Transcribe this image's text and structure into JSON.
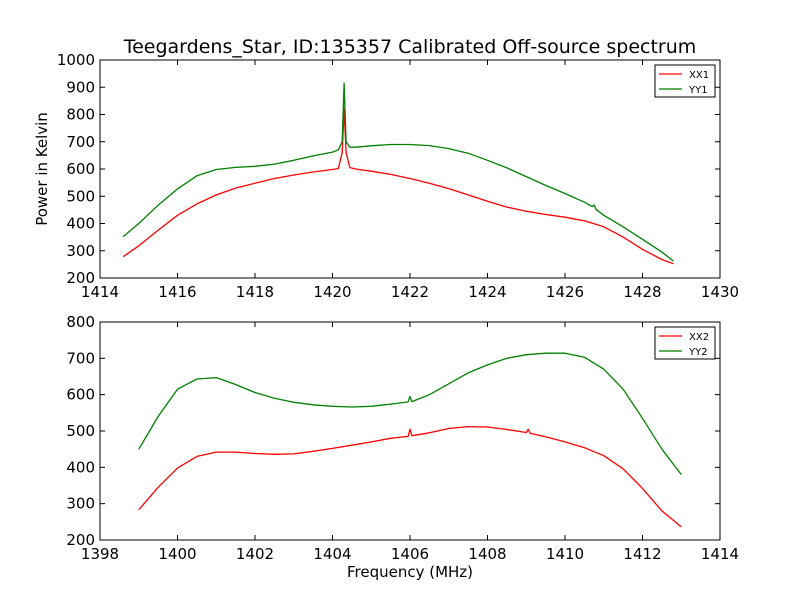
{
  "title": "Teegardens_Star, ID:135357 Calibrated Off-source spectrum",
  "xlabel": "Frequency (MHz)",
  "chart_data": [
    {
      "type": "line",
      "title": "Teegardens_Star, ID:135357 Calibrated Off-source spectrum",
      "xlabel": "",
      "ylabel": "Power in Kelvin",
      "xlim": [
        1414,
        1430
      ],
      "ylim": [
        200,
        1000
      ],
      "xticks": [
        "1414",
        "1416",
        "1418",
        "1420",
        "1422",
        "1424",
        "1426",
        "1428",
        "1430"
      ],
      "yticks": [
        "200",
        "300",
        "400",
        "500",
        "600",
        "700",
        "800",
        "900",
        "1000"
      ],
      "legend": "top-right",
      "grid": false,
      "series": [
        {
          "name": "XX1",
          "color": "#ff0000",
          "x": [
            1414.6,
            1415.0,
            1415.5,
            1416.0,
            1416.5,
            1417.0,
            1417.5,
            1418.0,
            1418.5,
            1419.0,
            1419.5,
            1420.0,
            1420.15,
            1420.25,
            1420.3,
            1420.35,
            1420.45,
            1420.6,
            1421.0,
            1421.5,
            1422.0,
            1422.5,
            1423.0,
            1423.5,
            1424.0,
            1424.5,
            1425.0,
            1425.5,
            1426.0,
            1426.5,
            1427.0,
            1427.5,
            1428.0,
            1428.5,
            1428.8
          ],
          "y": [
            278,
            318,
            375,
            430,
            472,
            505,
            530,
            548,
            565,
            578,
            589,
            598,
            602,
            660,
            820,
            660,
            605,
            600,
            592,
            580,
            565,
            548,
            528,
            505,
            482,
            460,
            445,
            433,
            423,
            410,
            388,
            350,
            305,
            268,
            252
          ]
        },
        {
          "name": "YY1",
          "color": "#008000",
          "x": [
            1414.6,
            1415.0,
            1415.5,
            1416.0,
            1416.5,
            1417.0,
            1417.5,
            1418.0,
            1418.5,
            1419.0,
            1419.5,
            1420.0,
            1420.15,
            1420.25,
            1420.3,
            1420.35,
            1420.45,
            1420.6,
            1421.0,
            1421.5,
            1422.0,
            1422.5,
            1423.0,
            1423.5,
            1424.0,
            1424.5,
            1425.0,
            1425.5,
            1426.0,
            1426.5,
            1426.7,
            1426.75,
            1426.8,
            1427.0,
            1427.5,
            1428.0,
            1428.5,
            1428.8
          ],
          "y": [
            352,
            400,
            467,
            527,
            575,
            598,
            606,
            610,
            618,
            632,
            648,
            662,
            670,
            700,
            915,
            700,
            680,
            680,
            685,
            690,
            690,
            686,
            675,
            658,
            632,
            604,
            572,
            540,
            510,
            478,
            462,
            468,
            452,
            430,
            388,
            342,
            295,
            262
          ]
        }
      ]
    },
    {
      "type": "line",
      "title": "",
      "xlabel": "Frequency (MHz)",
      "ylabel": "",
      "xlim": [
        1398,
        1414
      ],
      "ylim": [
        200,
        800
      ],
      "xticks": [
        "1398",
        "1400",
        "1402",
        "1404",
        "1406",
        "1408",
        "1410",
        "1412",
        "1414"
      ],
      "yticks": [
        "200",
        "300",
        "400",
        "500",
        "600",
        "700",
        "800"
      ],
      "legend": "top-right",
      "grid": false,
      "series": [
        {
          "name": "XX2",
          "color": "#ff0000",
          "x": [
            1399.0,
            1399.5,
            1400.0,
            1400.5,
            1401.0,
            1401.5,
            1402.0,
            1402.5,
            1403.0,
            1403.5,
            1404.0,
            1404.5,
            1405.0,
            1405.5,
            1405.95,
            1406.0,
            1406.05,
            1406.5,
            1407.0,
            1407.5,
            1408.0,
            1408.5,
            1409.0,
            1409.05,
            1409.1,
            1409.5,
            1410.0,
            1410.5,
            1411.0,
            1411.5,
            1412.0,
            1412.5,
            1413.0
          ],
          "y": [
            283,
            345,
            398,
            430,
            442,
            442,
            438,
            436,
            437,
            444,
            452,
            461,
            470,
            480,
            485,
            505,
            487,
            495,
            507,
            512,
            511,
            504,
            496,
            505,
            494,
            484,
            470,
            454,
            432,
            396,
            342,
            280,
            236
          ]
        },
        {
          "name": "YY2",
          "color": "#008000",
          "x": [
            1399.0,
            1399.5,
            1400.0,
            1400.5,
            1401.0,
            1401.5,
            1402.0,
            1402.5,
            1403.0,
            1403.5,
            1404.0,
            1404.5,
            1405.0,
            1405.5,
            1405.95,
            1406.0,
            1406.05,
            1406.5,
            1407.0,
            1407.5,
            1408.0,
            1408.5,
            1409.0,
            1409.5,
            1410.0,
            1410.5,
            1411.0,
            1411.5,
            1412.0,
            1412.5,
            1413.0
          ],
          "y": [
            450,
            540,
            615,
            643,
            647,
            628,
            606,
            590,
            579,
            572,
            568,
            566,
            568,
            574,
            580,
            595,
            581,
            600,
            630,
            660,
            682,
            700,
            710,
            714,
            714,
            703,
            670,
            615,
            535,
            450,
            380
          ]
        }
      ]
    }
  ]
}
